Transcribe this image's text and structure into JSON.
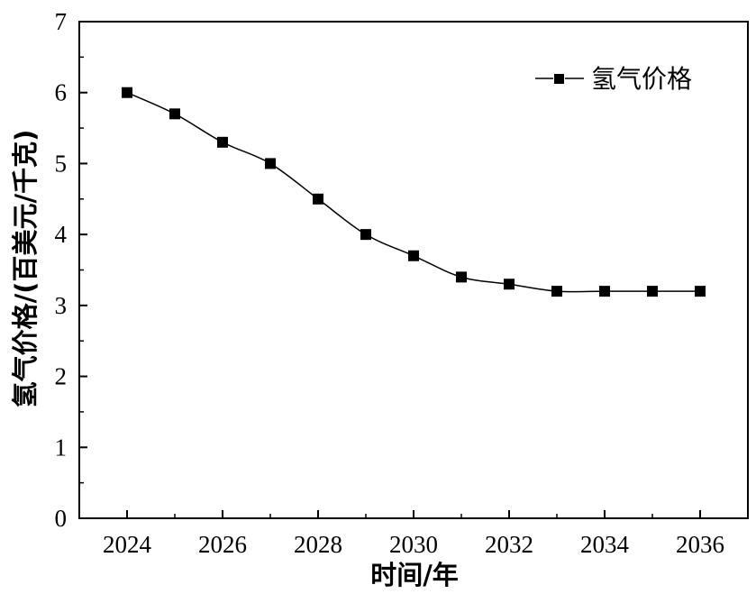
{
  "chart_data": {
    "type": "line",
    "xlabel": "时间/年",
    "ylabel": "氢气价格/(百美元/千克)",
    "xlim": [
      2023,
      2037
    ],
    "ylim": [
      0,
      7
    ],
    "x_ticks": [
      "2024",
      "2026",
      "2028",
      "2030",
      "2032",
      "2034",
      "2036"
    ],
    "y_ticks": [
      "0",
      "1",
      "2",
      "3",
      "4",
      "5",
      "6",
      "7"
    ],
    "legend_position": "top-right",
    "grid": false,
    "series": [
      {
        "name": "氢气价格",
        "marker": "square",
        "color": "#000000",
        "x": [
          2024,
          2025,
          2026,
          2027,
          2028,
          2029,
          2030,
          2031,
          2032,
          2033,
          2034,
          2035,
          2036
        ],
        "y": [
          6.0,
          5.7,
          5.3,
          5.0,
          4.5,
          4.0,
          3.7,
          3.4,
          3.3,
          3.2,
          3.2,
          3.2,
          3.2
        ]
      }
    ]
  }
}
